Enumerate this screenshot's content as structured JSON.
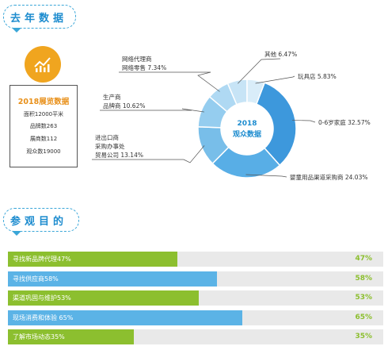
{
  "section1": {
    "title": "去年数据"
  },
  "section2": {
    "title": "参观目的"
  },
  "info": {
    "title": "2018展览数据",
    "lines": [
      "面积12000平米",
      "品牌数263",
      "展商数112",
      "观众数19000"
    ]
  },
  "donut_center": {
    "line1": "2018",
    "line2": "观众数据"
  },
  "colors": {
    "accent_blue": "#1d8ccf",
    "accent_orange": "#f0a51f",
    "green": "#8cbf2f",
    "blue_bar": "#5bb3e6"
  },
  "chart_data": [
    {
      "type": "pie",
      "title": "2018 观众数据",
      "slices": [
        {
          "label": "0-6岁家庭",
          "value": 32.57,
          "value_label": "32.57%"
        },
        {
          "label": "婴童用品渠道采购商",
          "value": 24.03,
          "value_label": "24.03%"
        },
        {
          "label": "进出口商 采购办事处 贸易公司",
          "value": 13.14,
          "value_label": "13.14%"
        },
        {
          "label": "生产商 品牌商",
          "value": 10.62,
          "value_label": "10.62%"
        },
        {
          "label": "网络代理商 网络零售",
          "value": 7.34,
          "value_label": "7.34%"
        },
        {
          "label": "其他",
          "value": 6.47,
          "value_label": "6.47%"
        },
        {
          "label": "玩具店",
          "value": 5.83,
          "value_label": "5.83%"
        }
      ]
    },
    {
      "type": "bar",
      "orientation": "horizontal",
      "categories": [
        "寻找新品牌代理",
        "寻找供应商",
        "渠道巩固与维护",
        "现场消费和体验",
        "了解市场动态"
      ],
      "labels": [
        "寻找新品牌代理47%",
        "寻找供应商58%",
        "渠道巩固与维护53%",
        "现场消费和体验 65%",
        "了解市场动态35%"
      ],
      "values": [
        47,
        58,
        53,
        65,
        35
      ],
      "value_labels": [
        "47%",
        "58%",
        "53%",
        "65%",
        "35%"
      ],
      "colors": [
        "#8cbf2f",
        "#5bb3e6",
        "#8cbf2f",
        "#5bb3e6",
        "#8cbf2f"
      ],
      "xlim": [
        0,
        100
      ]
    }
  ]
}
